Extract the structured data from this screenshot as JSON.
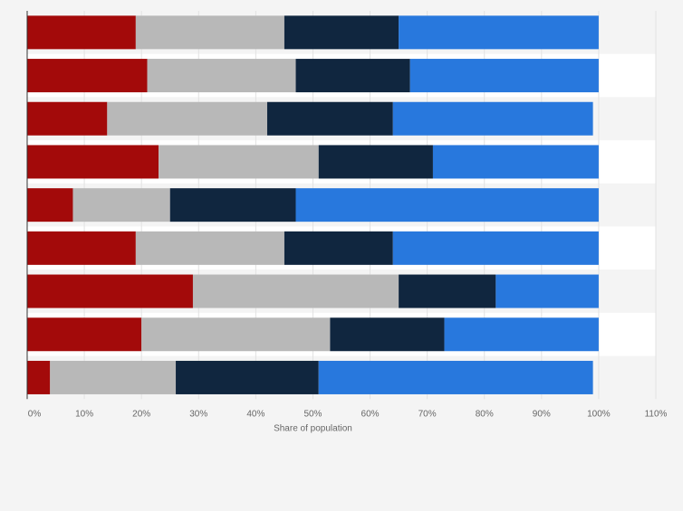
{
  "chart_data": {
    "type": "bar",
    "orientation": "horizontal",
    "stacked": true,
    "title": "",
    "xlabel": "Share of population",
    "ylabel": "",
    "xlim": [
      0,
      110
    ],
    "x_ticks": [
      0,
      10,
      20,
      30,
      40,
      50,
      60,
      70,
      80,
      90,
      100,
      110
    ],
    "tick_suffix": "%",
    "grid": true,
    "categories": [
      "",
      "",
      "",
      "",
      "",
      "",
      "",
      "",
      ""
    ],
    "series": [
      {
        "color": "#a30a0a",
        "values": [
          19,
          21,
          14,
          23,
          8,
          19,
          29,
          20,
          4
        ]
      },
      {
        "color": "#b8b8b8",
        "values": [
          26,
          26,
          28,
          28,
          17,
          26,
          36,
          33,
          22
        ]
      },
      {
        "color": "#10263f",
        "values": [
          20,
          20,
          22,
          20,
          22,
          19,
          17,
          20,
          25
        ]
      },
      {
        "color": "#2878dd",
        "values": [
          35,
          33,
          35,
          29,
          53,
          36,
          18,
          27,
          48
        ]
      }
    ]
  }
}
